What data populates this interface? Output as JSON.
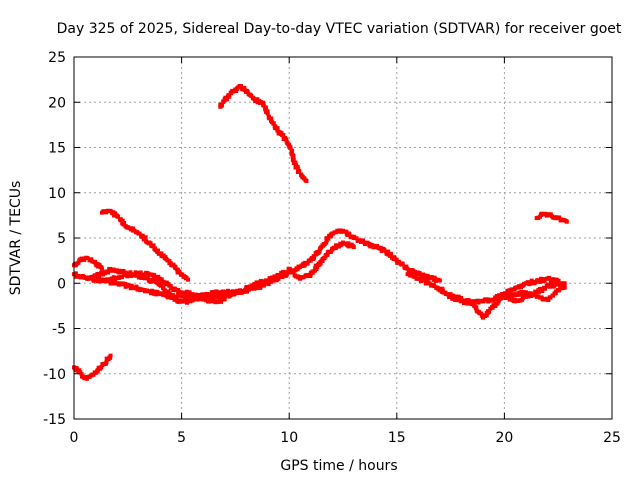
{
  "chart_data": {
    "type": "scatter",
    "title": "Day 325 of 2025, Sidereal Day-to-day VTEC variation (SDTVAR) for receiver goet",
    "xlabel": "GPS time / hours",
    "ylabel": "SDTVAR / TECUs",
    "xlim": [
      0,
      25
    ],
    "ylim": [
      -15,
      25
    ],
    "x_ticks": [
      0,
      5,
      10,
      15,
      20,
      25
    ],
    "y_ticks": [
      -15,
      -10,
      -5,
      0,
      5,
      10,
      15,
      20,
      25
    ],
    "grid": true,
    "legend": "none",
    "marker_color": "#ff0000",
    "series": [
      {
        "name": "arc1",
        "x": [
          0.0,
          0.3,
          0.6,
          1.0,
          1.3
        ],
        "y": [
          2.0,
          2.6,
          2.8,
          2.2,
          1.6
        ]
      },
      {
        "name": "arc2",
        "x": [
          0.0,
          0.2,
          0.5,
          0.8,
          1.1,
          1.4,
          1.7
        ],
        "y": [
          -9.3,
          -9.7,
          -10.5,
          -10.2,
          -9.6,
          -8.9,
          -8.0
        ]
      },
      {
        "name": "arc3",
        "x": [
          1.3,
          1.7,
          2.0,
          2.5,
          3.0,
          3.5,
          4.0,
          4.5,
          5.0,
          5.3
        ],
        "y": [
          7.8,
          8.0,
          7.4,
          6.2,
          5.5,
          4.5,
          3.3,
          2.2,
          1.0,
          0.4
        ]
      },
      {
        "name": "arc4",
        "x": [
          0.0,
          0.5,
          1.0,
          1.5,
          2.0,
          2.5,
          3.0,
          3.5,
          4.0,
          4.5,
          5.0,
          5.5,
          6.0,
          6.5,
          7.0
        ],
        "y": [
          1.0,
          0.6,
          0.4,
          0.2,
          0.0,
          -0.3,
          -0.6,
          -0.9,
          -1.2,
          -1.5,
          -1.4,
          -1.6,
          -1.8,
          -2.0,
          -1.8
        ]
      },
      {
        "name": "arc5",
        "x": [
          0.7,
          1.2,
          1.7,
          2.2,
          2.7,
          3.2,
          3.7,
          4.0,
          4.3,
          4.8,
          5.3,
          5.8,
          6.3,
          6.8,
          7.3
        ],
        "y": [
          0.5,
          1.0,
          1.5,
          1.3,
          1.0,
          0.6,
          0.2,
          -0.2,
          -1.0,
          -2.0,
          -2.0,
          -1.5,
          -1.2,
          -1.0,
          -1.0
        ]
      },
      {
        "name": "arc6",
        "x": [
          1.5,
          2.0,
          2.5,
          3.0,
          3.5,
          4.0,
          4.5,
          5.0,
          5.5,
          6.0,
          6.5,
          7.0,
          7.5,
          8.0
        ],
        "y": [
          0.3,
          0.6,
          0.9,
          1.1,
          1.0,
          0.5,
          -0.5,
          -1.0,
          -1.2,
          -1.4,
          -1.5,
          -1.3,
          -1.0,
          -0.8
        ]
      },
      {
        "name": "arc7",
        "x": [
          6.8,
          7.0,
          7.3,
          7.7,
          8.0,
          8.4,
          8.8,
          9.2,
          9.6,
          10.0,
          10.3,
          10.6,
          10.8
        ],
        "y": [
          19.5,
          20.2,
          21.0,
          21.8,
          21.2,
          20.3,
          19.8,
          17.8,
          16.5,
          15.3,
          13.0,
          11.8,
          11.3
        ]
      },
      {
        "name": "arc8",
        "x": [
          7.0,
          7.5,
          8.0,
          8.5,
          9.0,
          9.5,
          10.0,
          10.5,
          11.0,
          11.5,
          12.0,
          12.5,
          13.0,
          13.5,
          14.0,
          14.5,
          15.0,
          15.5,
          16.0,
          16.5,
          17.0
        ],
        "y": [
          -1.5,
          -1.0,
          -0.8,
          -0.5,
          0.0,
          0.5,
          1.2,
          1.8,
          2.5,
          4.0,
          5.5,
          5.8,
          5.0,
          4.5,
          4.0,
          3.5,
          2.5,
          1.6,
          1.0,
          0.6,
          0.3
        ]
      },
      {
        "name": "arc9",
        "x": [
          8.0,
          8.5,
          9.0,
          9.5,
          10.0,
          10.5,
          11.0,
          11.5,
          12.0,
          12.5,
          13.0
        ],
        "y": [
          -0.5,
          0.0,
          0.3,
          0.8,
          1.5,
          0.5,
          1.0,
          2.5,
          3.8,
          4.5,
          4.0
        ]
      },
      {
        "name": "arc10",
        "x": [
          15.5,
          16.0,
          16.5,
          17.0,
          17.5,
          18.0,
          18.5,
          19.0,
          19.5,
          20.0,
          20.5,
          21.0,
          21.5,
          22.0,
          22.5,
          22.8
        ],
        "y": [
          1.0,
          0.5,
          0.0,
          -0.6,
          -1.5,
          -2.0,
          -2.3,
          -3.8,
          -2.5,
          -1.2,
          -0.5,
          0.0,
          0.2,
          0.5,
          0.2,
          -0.4
        ]
      },
      {
        "name": "arc11",
        "x": [
          17.5,
          18.0,
          18.5,
          19.0,
          19.5,
          20.0,
          20.5,
          21.0,
          21.5,
          22.0,
          22.5,
          22.8
        ],
        "y": [
          -1.2,
          -1.8,
          -2.0,
          -2.0,
          -1.8,
          -1.2,
          -2.0,
          -1.5,
          -1.0,
          -0.3,
          -0.1,
          0.0
        ]
      },
      {
        "name": "arc12",
        "x": [
          20.0,
          20.5,
          21.0,
          21.5,
          22.0,
          22.5,
          22.8
        ],
        "y": [
          -1.5,
          -1.2,
          -1.0,
          -1.5,
          -1.8,
          -0.8,
          -0.5
        ]
      },
      {
        "name": "arc13",
        "x": [
          21.5,
          21.8,
          22.1,
          22.4,
          22.7,
          22.9
        ],
        "y": [
          7.2,
          7.6,
          7.5,
          7.3,
          7.0,
          6.8
        ]
      }
    ]
  }
}
